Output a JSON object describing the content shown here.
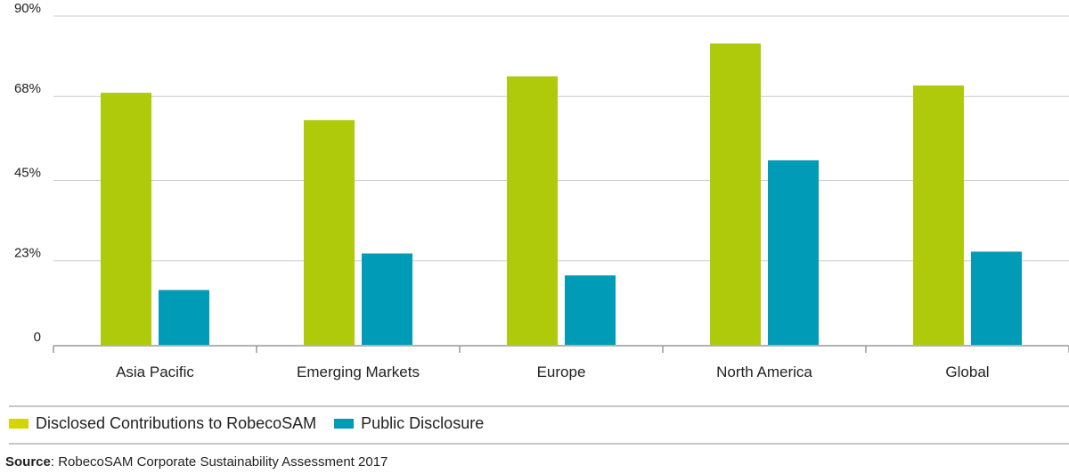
{
  "chart_data": {
    "type": "bar",
    "categories": [
      "Asia Pacific",
      "Emerging Markets",
      "Europe",
      "North America",
      "Global"
    ],
    "series": [
      {
        "name": "Disclosed Contributions to RobecoSAM",
        "color": "#afca0b",
        "values": [
          69,
          61.5,
          73.5,
          82.5,
          71
        ]
      },
      {
        "name": "Public Disclosure",
        "color": "#009bb6",
        "values": [
          15,
          25,
          19,
          50.5,
          25.5
        ]
      }
    ],
    "yticks": [
      0,
      23,
      45,
      68,
      90
    ],
    "ytick_labels": [
      "0",
      "23%",
      "45%",
      "68%",
      "90%"
    ],
    "ylim": [
      0,
      90
    ],
    "grid": true,
    "legend_position": "bottom-left"
  },
  "source": {
    "label": "Source",
    "text": ": RobecoSAM Corporate Sustainability Assessment 2017"
  }
}
